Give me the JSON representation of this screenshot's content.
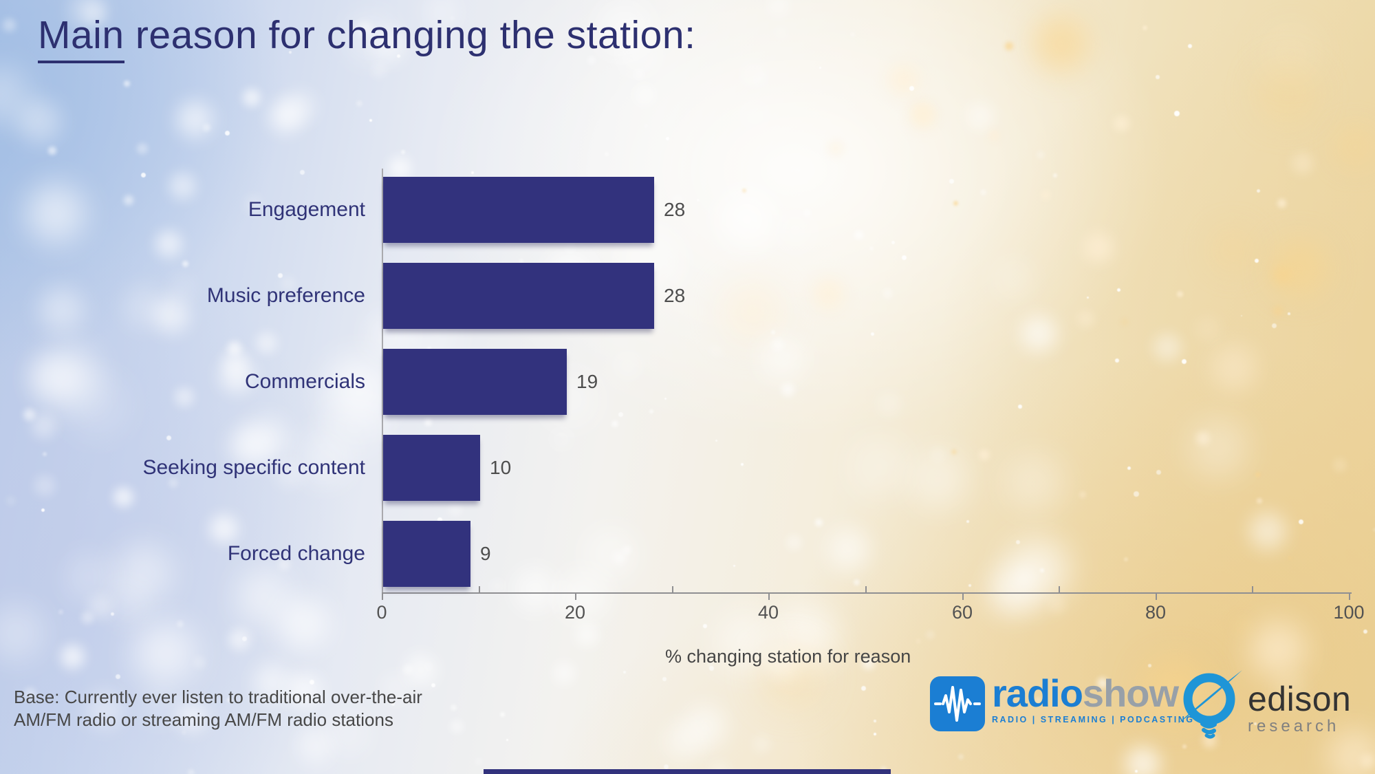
{
  "title": {
    "lead": "Main",
    "rest": " reason for changing the station:"
  },
  "chart_data": {
    "type": "bar",
    "orientation": "horizontal",
    "title": "Main reason for changing the station:",
    "categories": [
      "Engagement",
      "Music preference",
      "Commercials",
      "Seeking specific content",
      "Forced change"
    ],
    "values": [
      28,
      28,
      19,
      10,
      9
    ],
    "xlabel": "% changing station for reason",
    "ylabel": "",
    "xlim": [
      0,
      100
    ],
    "x_major_ticks": [
      0,
      20,
      40,
      60,
      80,
      100
    ],
    "x_minor_tick_step": 10,
    "grid": false,
    "legend": "none",
    "bar_color": "#32327d",
    "category_label_color": "#303377",
    "value_label_color": "#4d4d4d"
  },
  "footer": {
    "base": [
      "Base: Currently ever listen to traditional over-the-air",
      "AM/FM radio or streaming AM/FM radio stations"
    ]
  },
  "logos": {
    "radioshow": {
      "word_part1": "radio",
      "word_part2": "show",
      "tagline": "RADIO | STREAMING | PODCASTING",
      "blue": "#1b7ed3",
      "gray": "#98a0a8"
    },
    "edison": {
      "name": "edison",
      "sub": "research",
      "blue": "#1e95d7",
      "dark": "#333333",
      "gray": "#808080"
    }
  }
}
